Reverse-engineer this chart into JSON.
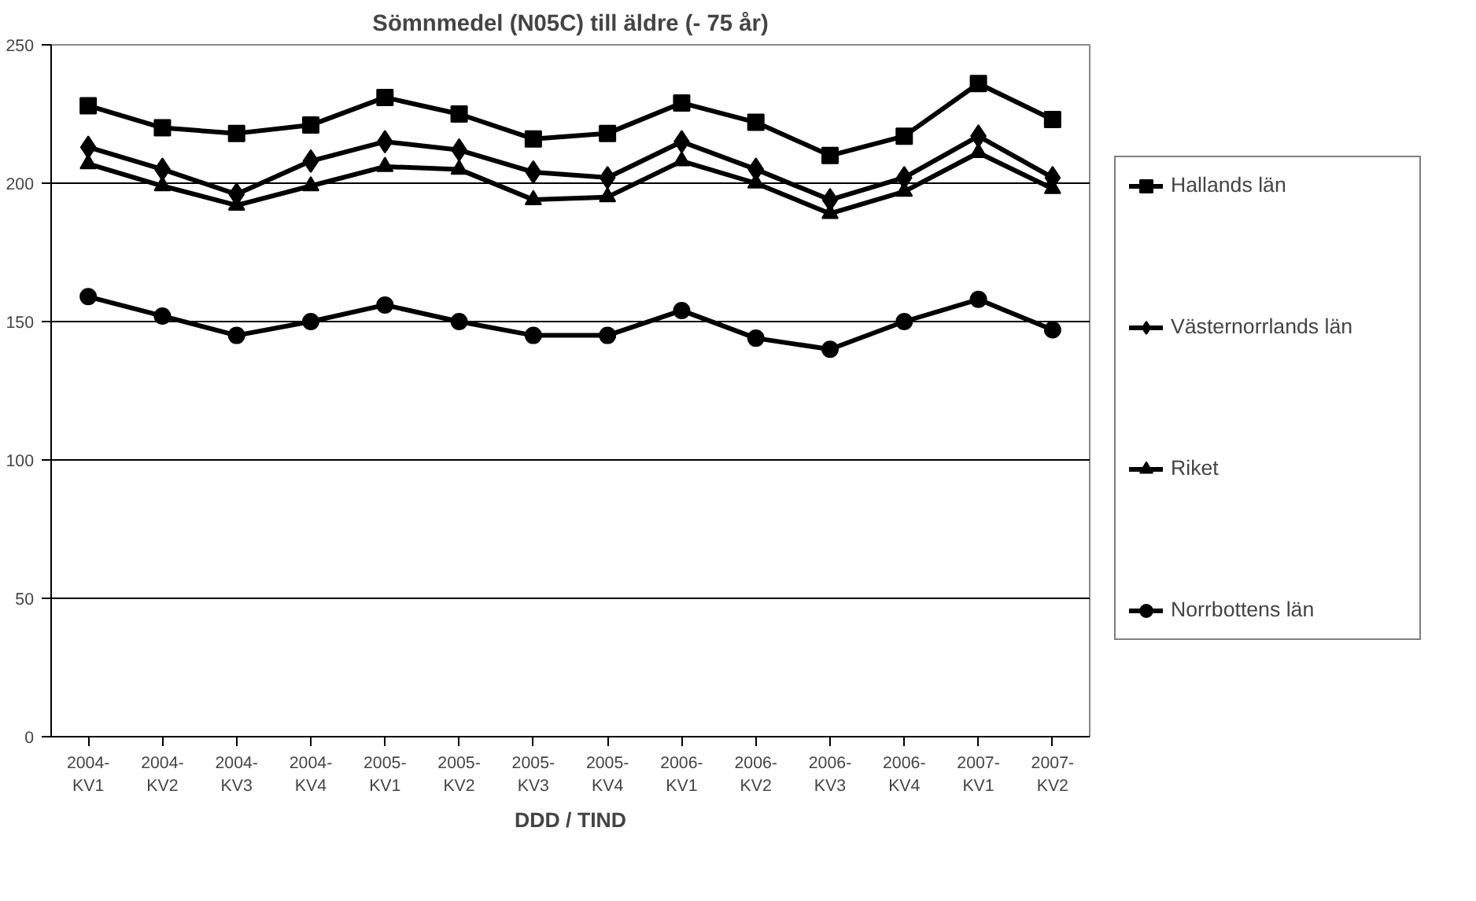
{
  "chart_data": {
    "type": "line",
    "title": "Sömnmedel (N05C) till äldre (- 75 år)",
    "xlabel": "DDD / TIND",
    "categories": [
      "2004-KV1",
      "2004-KV2",
      "2004-KV3",
      "2004-KV4",
      "2005-KV1",
      "2005-KV2",
      "2005-KV3",
      "2005-KV4",
      "2006-KV1",
      "2006-KV2",
      "2006-KV3",
      "2006-KV4",
      "2007-KV1",
      "2007-KV2"
    ],
    "series": [
      {
        "name": "Hallands län",
        "color": "#000000",
        "marker": "square",
        "values": [
          228,
          220,
          218,
          221,
          231,
          225,
          216,
          218,
          229,
          222,
          210,
          217,
          236,
          223
        ]
      },
      {
        "name": "Västernorrlands län",
        "color": "#000000",
        "marker": "diamond",
        "values": [
          213,
          205,
          196,
          208,
          215,
          212,
          204,
          202,
          215,
          205,
          194,
          202,
          217,
          202
        ]
      },
      {
        "name": "Riket",
        "color": "#000000",
        "marker": "triangle",
        "values": [
          207,
          199,
          192,
          199,
          206,
          205,
          194,
          195,
          208,
          200,
          189,
          197,
          211,
          198
        ]
      },
      {
        "name": "Norrbottens län",
        "color": "#000000",
        "marker": "circle",
        "values": [
          159,
          152,
          145,
          150,
          156,
          150,
          145,
          145,
          154,
          144,
          140,
          150,
          158,
          147
        ]
      }
    ],
    "ylim": [
      0,
      250
    ],
    "yticks": [
      0,
      50,
      100,
      150,
      200,
      250
    ],
    "grid": "y",
    "legend": "right",
    "line_style": "solid"
  }
}
